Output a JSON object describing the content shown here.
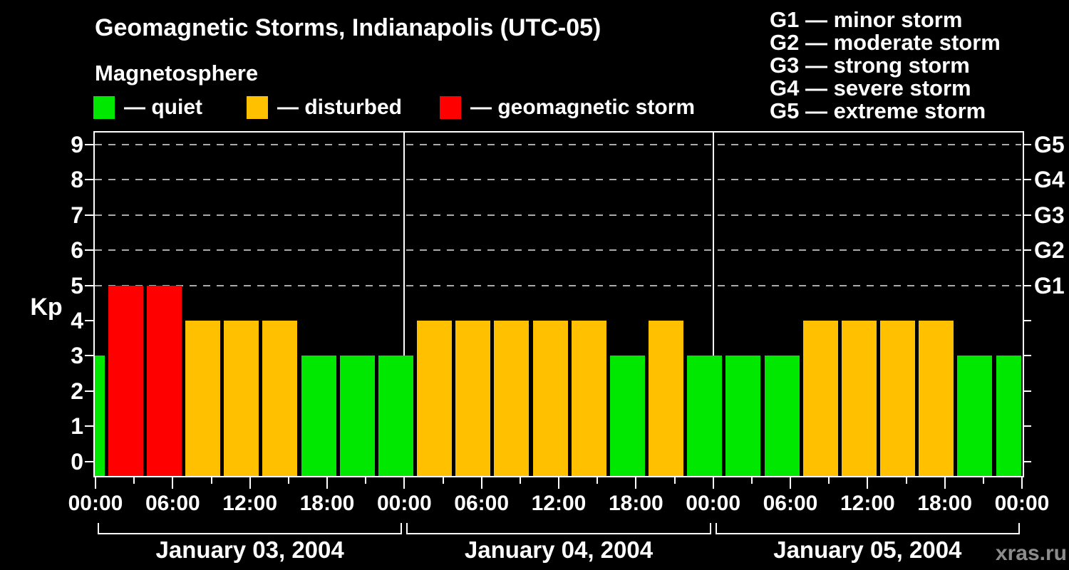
{
  "header": {
    "title": "Geomagnetic Storms, Indianapolis (UTC-05)",
    "subtitle": "Magnetosphere"
  },
  "legend": {
    "items": [
      {
        "state": "quiet",
        "label": "— quiet"
      },
      {
        "state": "disturbed",
        "label": "— disturbed"
      },
      {
        "state": "storm",
        "label": "— geomagnetic storm"
      }
    ]
  },
  "g_scale_legend": {
    "lines": [
      "G1 — minor storm",
      "G2 — moderate storm",
      "G3 — strong storm",
      "G4 — severe storm",
      "G5 — extreme storm"
    ]
  },
  "colors": {
    "quiet": "#00e800",
    "disturbed": "#ffc000",
    "storm": "#ff0000",
    "axis": "#ffffff",
    "grid": "#aaaaaa",
    "background": "#000000",
    "watermark_text": "#8c8c8c"
  },
  "chart_data": {
    "type": "bar",
    "title": "Geomagnetic Storms, Indianapolis (UTC-05)",
    "subtitle": "Magnetosphere",
    "ylabel": "Kp",
    "ylim": [
      0,
      9
    ],
    "interval_hours": 3,
    "x_hours": [
      0,
      3,
      6,
      9,
      12,
      15,
      18,
      21,
      24,
      27,
      30,
      33,
      36,
      39,
      42,
      45,
      48,
      51,
      54,
      57,
      60,
      63,
      66,
      69,
      72
    ],
    "values": [
      3,
      5,
      5,
      4,
      4,
      4,
      3,
      3,
      3,
      4,
      4,
      4,
      4,
      4,
      3,
      4,
      3,
      3,
      3,
      4,
      4,
      4,
      4,
      3,
      3
    ],
    "states": [
      "quiet",
      "storm",
      "storm",
      "disturbed",
      "disturbed",
      "disturbed",
      "quiet",
      "quiet",
      "quiet",
      "disturbed",
      "disturbed",
      "disturbed",
      "disturbed",
      "disturbed",
      "quiet",
      "disturbed",
      "quiet",
      "quiet",
      "quiet",
      "disturbed",
      "disturbed",
      "disturbed",
      "disturbed",
      "quiet",
      "quiet"
    ],
    "y_ticks": [
      0,
      1,
      2,
      3,
      4,
      5,
      6,
      7,
      8,
      9
    ],
    "x_tick_labels": [
      "00:00",
      "06:00",
      "12:00",
      "18:00",
      "00:00",
      "06:00",
      "12:00",
      "18:00",
      "00:00",
      "06:00",
      "12:00",
      "18:00",
      "00:00"
    ],
    "right_axis_labels": [
      {
        "kp": 5,
        "label": "G1"
      },
      {
        "kp": 6,
        "label": "G2"
      },
      {
        "kp": 7,
        "label": "G3"
      },
      {
        "kp": 8,
        "label": "G4"
      },
      {
        "kp": 9,
        "label": "G5"
      }
    ],
    "gridlines_at_kp": [
      5,
      6,
      7,
      8,
      9
    ],
    "grid": "dashed horizontal lines at storm thresholds only",
    "legend_position": "top-left",
    "day_labels": [
      "January 03, 2004",
      "January 04, 2004",
      "January 05, 2004"
    ]
  },
  "watermark": {
    "label": "xras.ru"
  }
}
